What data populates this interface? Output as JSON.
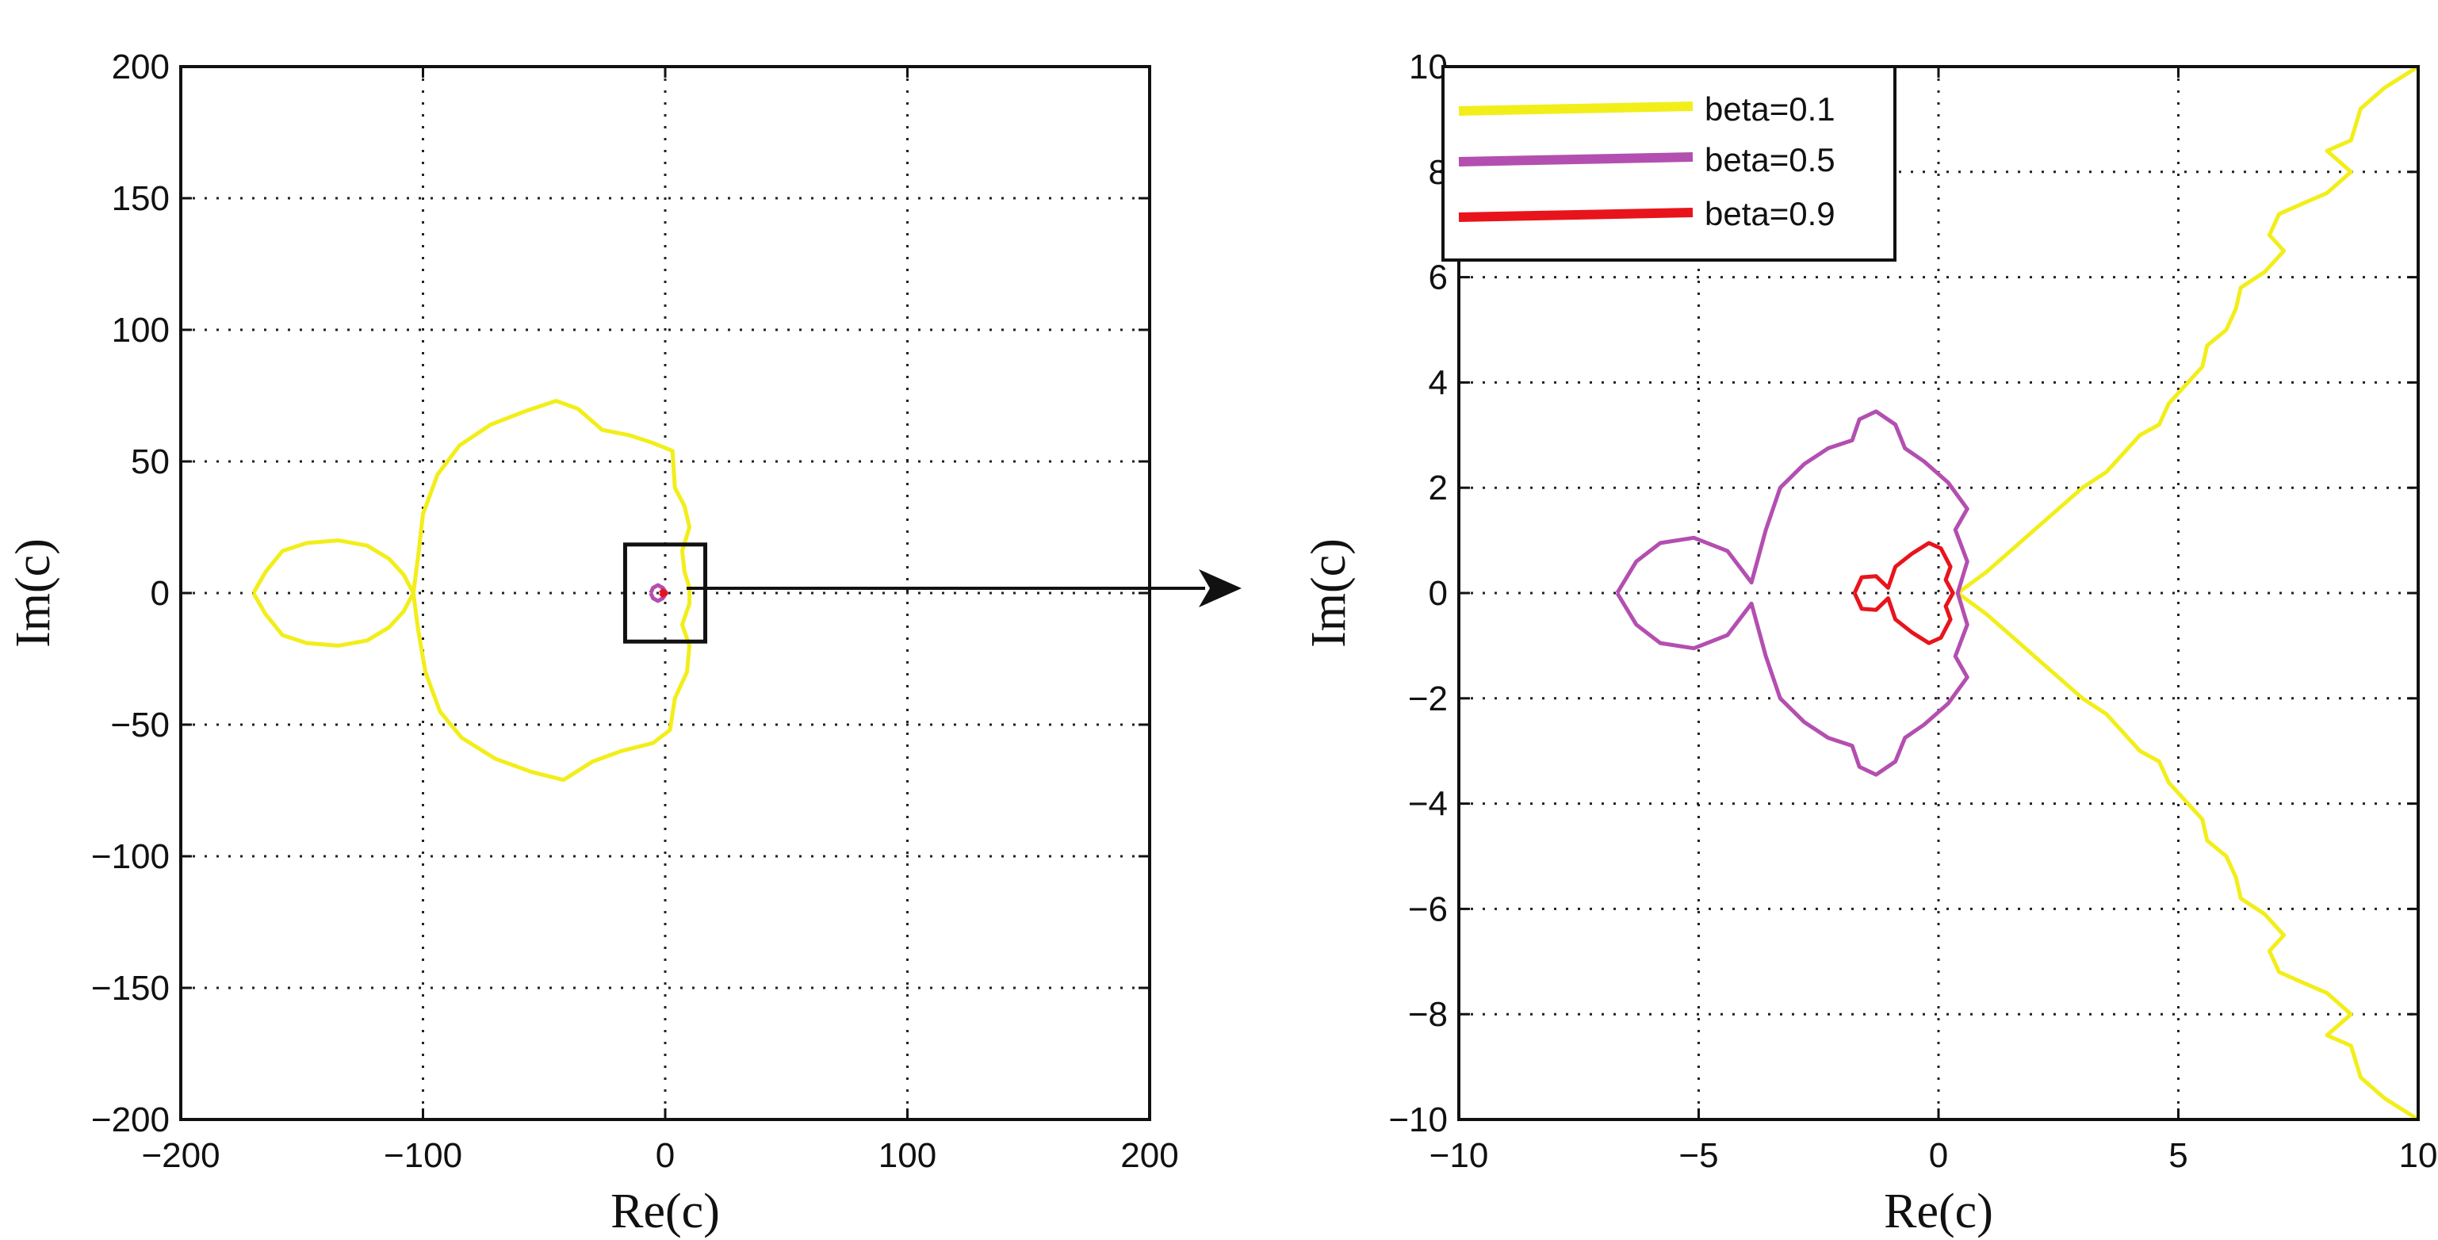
{
  "chart_data": [
    {
      "id": "overview",
      "type": "line",
      "title": "",
      "xlabel": "Re(c)",
      "ylabel": "Im(c)",
      "xlim": [
        -200,
        200
      ],
      "ylim": [
        -200,
        200
      ],
      "xticks": [
        -200,
        -100,
        0,
        100,
        200
      ],
      "yticks": [
        -200,
        -150,
        -100,
        -50,
        0,
        50,
        100,
        150,
        200
      ],
      "grid": true,
      "zoom_box": {
        "x": [
          -10,
          10
        ],
        "y": [
          -10,
          10
        ]
      },
      "series": [
        {
          "name": "beta=0.1",
          "color": "#f2ee1a",
          "points": [
            [
              -170,
              0
            ],
            [
              -165,
              8
            ],
            [
              -158,
              16
            ],
            [
              -148,
              19
            ],
            [
              -135,
              20
            ],
            [
              -123,
              18
            ],
            [
              -114,
              13
            ],
            [
              -108,
              7
            ],
            [
              -104,
              0
            ],
            [
              -102,
              14
            ],
            [
              -100,
              30
            ],
            [
              -94,
              45
            ],
            [
              -85,
              56
            ],
            [
              -72,
              64
            ],
            [
              -58,
              69
            ],
            [
              -45,
              73
            ],
            [
              -36,
              70
            ],
            [
              -26,
              62
            ],
            [
              -15,
              60
            ],
            [
              -5,
              57
            ],
            [
              3,
              54
            ],
            [
              4,
              40
            ],
            [
              8,
              33
            ],
            [
              10,
              25
            ],
            [
              7,
              16
            ],
            [
              8,
              8
            ],
            [
              10,
              2
            ],
            [
              10,
              -4
            ],
            [
              7,
              -12
            ],
            [
              10,
              -20
            ],
            [
              9,
              -30
            ],
            [
              4,
              -40
            ],
            [
              2,
              -52
            ],
            [
              -5,
              -57
            ],
            [
              -18,
              -60
            ],
            [
              -30,
              -64
            ],
            [
              -42,
              -71
            ],
            [
              -55,
              -68
            ],
            [
              -70,
              -63
            ],
            [
              -84,
              -55
            ],
            [
              -93,
              -45
            ],
            [
              -99,
              -30
            ],
            [
              -102,
              -14
            ],
            [
              -104,
              0
            ],
            [
              -108,
              -7
            ],
            [
              -114,
              -13
            ],
            [
              -123,
              -18
            ],
            [
              -135,
              -20
            ],
            [
              -148,
              -19
            ],
            [
              -158,
              -16
            ],
            [
              -165,
              -8
            ],
            [
              -170,
              0
            ]
          ]
        },
        {
          "name": "beta=0.5",
          "color": "#b34fb0",
          "points": [
            [
              -6,
              0
            ],
            [
              -5,
              2
            ],
            [
              -3,
              3
            ],
            [
              -1,
              2
            ],
            [
              0.5,
              0
            ],
            [
              -1,
              -2
            ],
            [
              -3,
              -3
            ],
            [
              -5,
              -2
            ],
            [
              -6,
              0
            ]
          ]
        },
        {
          "name": "beta=0.9",
          "color": "#e8141c",
          "points": [
            [
              -2,
              0
            ],
            [
              -1,
              1
            ],
            [
              0.3,
              0
            ],
            [
              -1,
              -1
            ],
            [
              -2,
              0
            ]
          ]
        }
      ]
    },
    {
      "id": "zoom",
      "type": "line",
      "title": "",
      "xlabel": "Re(c)",
      "ylabel": "Im(c)",
      "xlim": [
        -10,
        10
      ],
      "ylim": [
        -10,
        10
      ],
      "xticks": [
        -10,
        -5,
        0,
        5,
        10
      ],
      "yticks": [
        -10,
        -8,
        -6,
        -4,
        -2,
        0,
        2,
        4,
        6,
        8,
        10
      ],
      "grid": true,
      "legend": "top-left",
      "series": [
        {
          "name": "beta=0.1",
          "color": "#f2ee1a",
          "points": [
            [
              10,
              10
            ],
            [
              9.3,
              9.6
            ],
            [
              8.8,
              9.2
            ],
            [
              8.6,
              8.6
            ],
            [
              8.1,
              8.4
            ],
            [
              8.6,
              8.0
            ],
            [
              8.1,
              7.6
            ],
            [
              7.6,
              7.4
            ],
            [
              7.1,
              7.2
            ],
            [
              6.9,
              6.8
            ],
            [
              7.2,
              6.5
            ],
            [
              6.8,
              6.1
            ],
            [
              6.3,
              5.8
            ],
            [
              6.2,
              5.4
            ],
            [
              6.0,
              5.0
            ],
            [
              5.6,
              4.7
            ],
            [
              5.5,
              4.3
            ],
            [
              5.2,
              4.0
            ],
            [
              4.8,
              3.6
            ],
            [
              4.6,
              3.2
            ],
            [
              4.2,
              3.0
            ],
            [
              3.8,
              2.6
            ],
            [
              3.5,
              2.3
            ],
            [
              3.0,
              2.0
            ],
            [
              2.5,
              1.6
            ],
            [
              2.0,
              1.2
            ],
            [
              1.5,
              0.8
            ],
            [
              1.0,
              0.4
            ],
            [
              0.4,
              0
            ],
            [
              1.0,
              -0.4
            ],
            [
              1.5,
              -0.8
            ],
            [
              2.0,
              -1.2
            ],
            [
              2.5,
              -1.6
            ],
            [
              3.0,
              -2.0
            ],
            [
              3.5,
              -2.3
            ],
            [
              3.8,
              -2.6
            ],
            [
              4.2,
              -3.0
            ],
            [
              4.6,
              -3.2
            ],
            [
              4.8,
              -3.6
            ],
            [
              5.2,
              -4.0
            ],
            [
              5.5,
              -4.3
            ],
            [
              5.6,
              -4.7
            ],
            [
              6.0,
              -5.0
            ],
            [
              6.2,
              -5.4
            ],
            [
              6.3,
              -5.8
            ],
            [
              6.8,
              -6.1
            ],
            [
              7.2,
              -6.5
            ],
            [
              6.9,
              -6.8
            ],
            [
              7.1,
              -7.2
            ],
            [
              7.6,
              -7.4
            ],
            [
              8.1,
              -7.6
            ],
            [
              8.6,
              -8.0
            ],
            [
              8.1,
              -8.4
            ],
            [
              8.6,
              -8.6
            ],
            [
              8.8,
              -9.2
            ],
            [
              9.3,
              -9.6
            ],
            [
              10,
              -10
            ]
          ]
        },
        {
          "name": "beta=0.5",
          "color": "#b34fb0",
          "points": [
            [
              -6.7,
              0
            ],
            [
              -6.3,
              0.6
            ],
            [
              -5.8,
              0.95
            ],
            [
              -5.1,
              1.05
            ],
            [
              -4.4,
              0.8
            ],
            [
              -3.9,
              0.2
            ],
            [
              -3.6,
              1.2
            ],
            [
              -3.3,
              2.0
            ],
            [
              -2.8,
              2.45
            ],
            [
              -2.3,
              2.75
            ],
            [
              -1.8,
              2.9
            ],
            [
              -1.65,
              3.3
            ],
            [
              -1.3,
              3.45
            ],
            [
              -0.9,
              3.2
            ],
            [
              -0.7,
              2.75
            ],
            [
              -0.3,
              2.5
            ],
            [
              0.2,
              2.1
            ],
            [
              0.6,
              1.6
            ],
            [
              0.35,
              1.2
            ],
            [
              0.6,
              0.6
            ],
            [
              0.4,
              0
            ],
            [
              0.6,
              -0.6
            ],
            [
              0.35,
              -1.2
            ],
            [
              0.6,
              -1.6
            ],
            [
              0.2,
              -2.1
            ],
            [
              -0.3,
              -2.5
            ],
            [
              -0.7,
              -2.75
            ],
            [
              -0.9,
              -3.2
            ],
            [
              -1.3,
              -3.45
            ],
            [
              -1.65,
              -3.3
            ],
            [
              -1.8,
              -2.9
            ],
            [
              -2.3,
              -2.75
            ],
            [
              -2.8,
              -2.45
            ],
            [
              -3.3,
              -2.0
            ],
            [
              -3.6,
              -1.2
            ],
            [
              -3.9,
              -0.2
            ],
            [
              -4.4,
              -0.8
            ],
            [
              -5.1,
              -1.05
            ],
            [
              -5.8,
              -0.95
            ],
            [
              -6.3,
              -0.6
            ],
            [
              -6.7,
              0
            ]
          ]
        },
        {
          "name": "beta=0.9",
          "color": "#e8141c",
          "points": [
            [
              -1.75,
              0
            ],
            [
              -1.6,
              0.3
            ],
            [
              -1.3,
              0.32
            ],
            [
              -1.05,
              0.1
            ],
            [
              -0.9,
              0.5
            ],
            [
              -0.55,
              0.75
            ],
            [
              -0.2,
              0.95
            ],
            [
              0.05,
              0.85
            ],
            [
              0.25,
              0.5
            ],
            [
              0.15,
              0.25
            ],
            [
              0.3,
              0
            ],
            [
              0.15,
              -0.25
            ],
            [
              0.25,
              -0.5
            ],
            [
              0.05,
              -0.85
            ],
            [
              -0.2,
              -0.95
            ],
            [
              -0.55,
              -0.75
            ],
            [
              -0.9,
              -0.5
            ],
            [
              -1.05,
              -0.1
            ],
            [
              -1.3,
              -0.32
            ],
            [
              -1.6,
              -0.3
            ],
            [
              -1.75,
              0
            ]
          ]
        }
      ]
    }
  ]
}
